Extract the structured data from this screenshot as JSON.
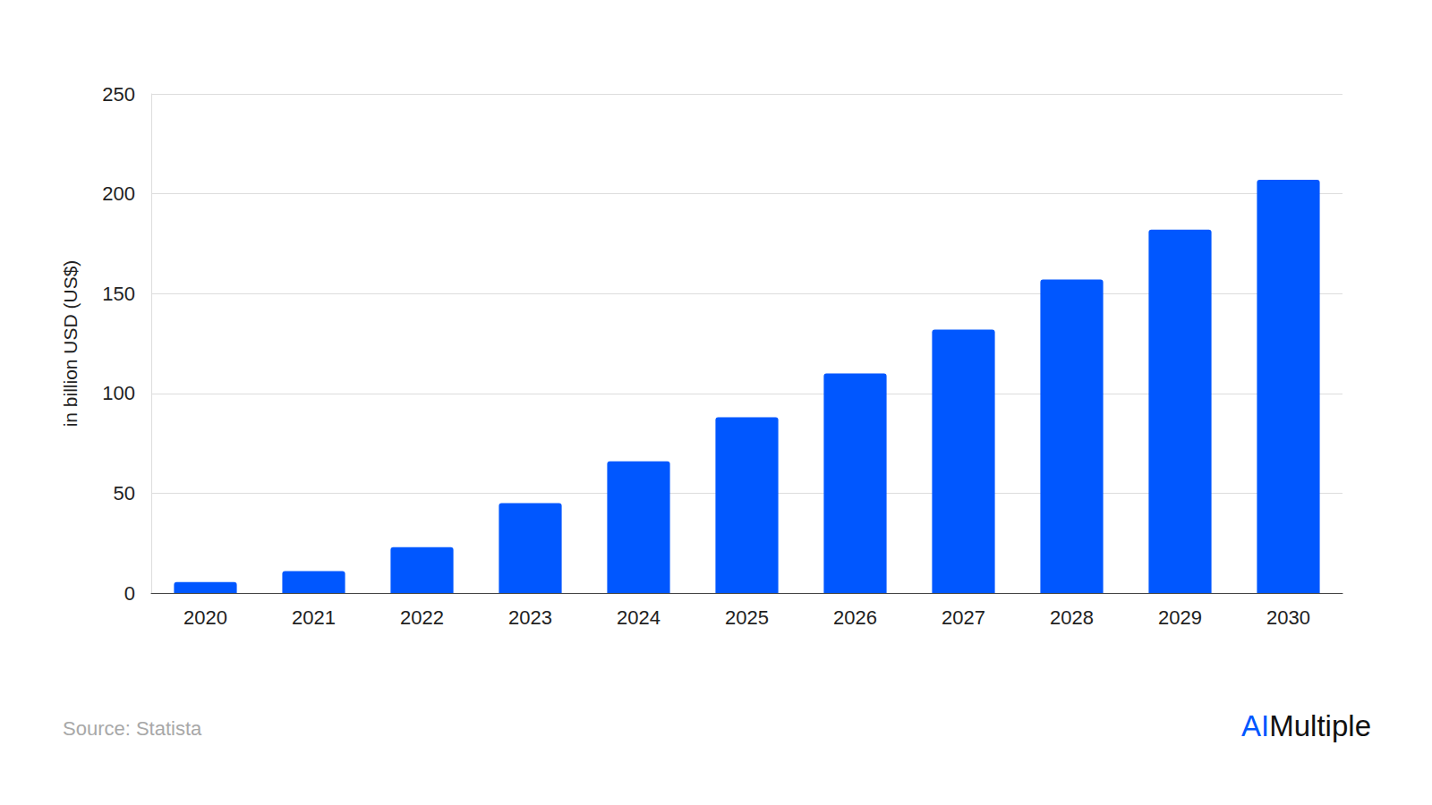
{
  "chart_data": {
    "type": "bar",
    "y_label": "in billion USD (US$)",
    "categories": [
      "2020",
      "2021",
      "2022",
      "2023",
      "2024",
      "2025",
      "2026",
      "2027",
      "2028",
      "2029",
      "2030"
    ],
    "values": [
      5.5,
      11,
      23,
      45,
      66,
      88,
      110,
      132,
      157,
      182,
      207
    ],
    "color": "#0057ff",
    "ylim": [
      0,
      250
    ],
    "yticks": [
      0,
      50,
      100,
      150,
      200,
      250
    ],
    "grid": true,
    "annotations": [
      "Source: Statista"
    ],
    "logo": [
      "AI",
      "Multiple"
    ]
  }
}
